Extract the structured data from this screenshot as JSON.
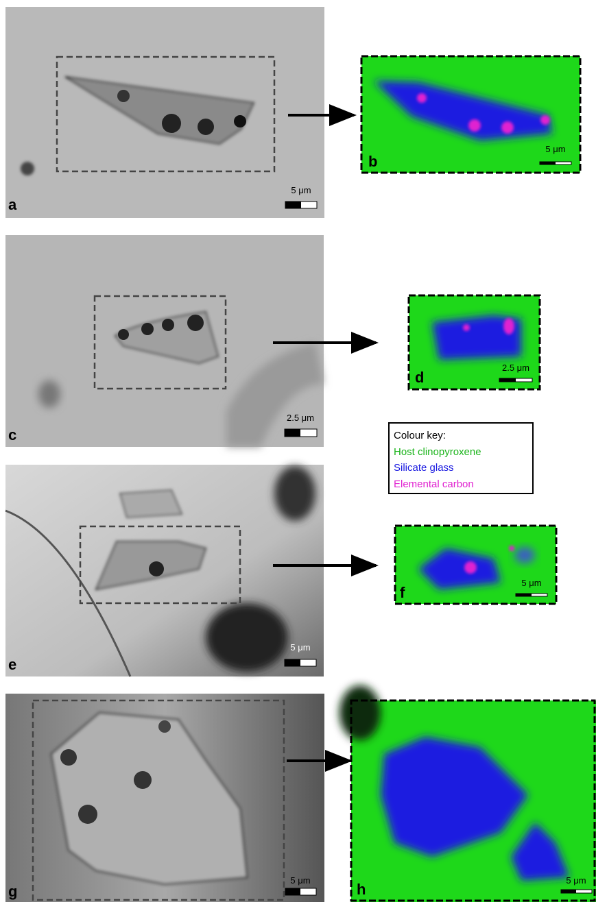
{
  "panels": [
    {
      "label": "a",
      "scale": "5 μm"
    },
    {
      "label": "b",
      "scale": "5 μm"
    },
    {
      "label": "c",
      "scale": "2.5 μm"
    },
    {
      "label": "d",
      "scale": "2.5 μm"
    },
    {
      "label": "e",
      "scale": "5 μm"
    },
    {
      "label": "f",
      "scale": "5 μm"
    },
    {
      "label": "g",
      "scale": "5 μm"
    },
    {
      "label": "h",
      "scale": "5 μm"
    }
  ],
  "colour_key": {
    "title": "Colour key:",
    "entries": [
      "Host clinopyroxene",
      "Silicate glass",
      "Elemental carbon"
    ]
  }
}
